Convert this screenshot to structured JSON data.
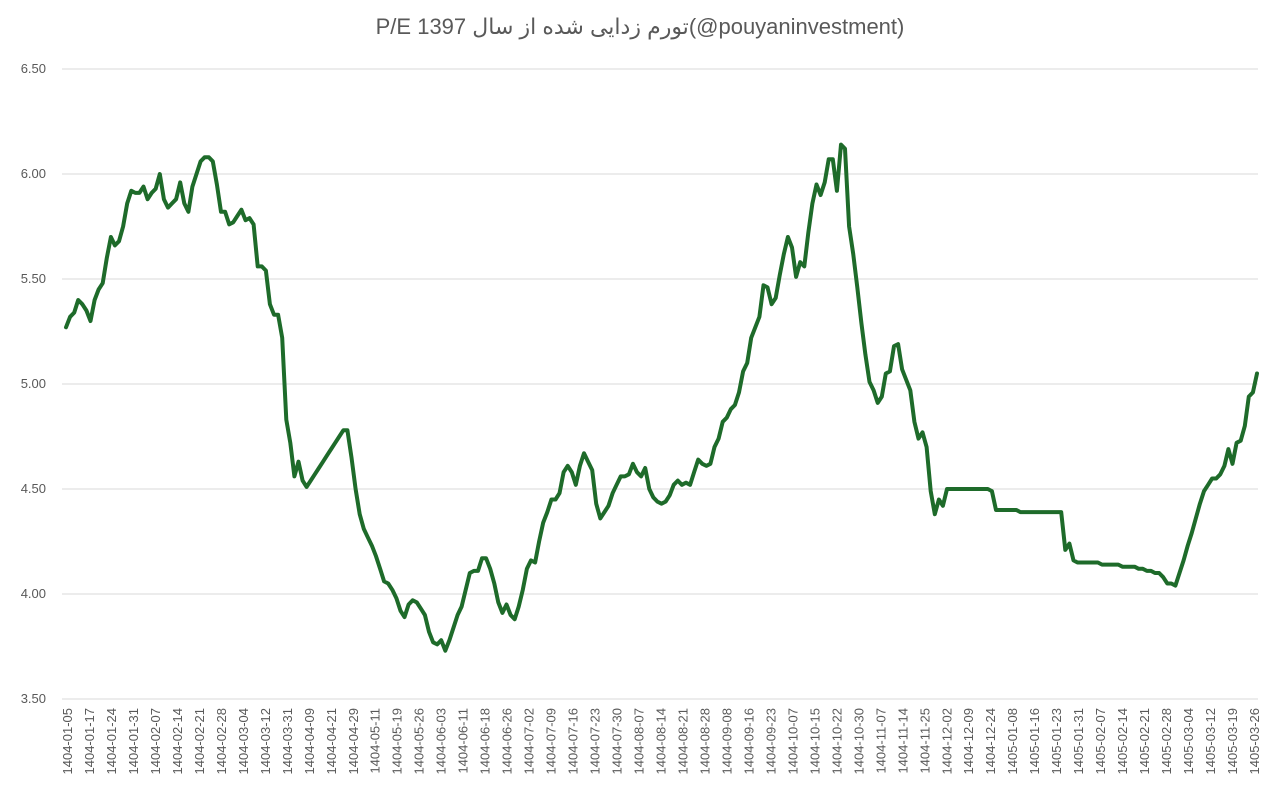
{
  "chart_data": {
    "type": "line",
    "title": "P/E تورم زدایی شده از سال 1397(@pouyaninvestment)",
    "xlabel": "",
    "ylabel": "",
    "ylim": [
      3.5,
      6.5
    ],
    "yticks": [
      "3.50",
      "4.00",
      "4.50",
      "5.00",
      "5.50",
      "6.00",
      "6.50"
    ],
    "grid": true,
    "legend": "none",
    "colors": {
      "line": "#1e6b2a",
      "grid": "#d9d9d9",
      "text": "#595959"
    },
    "x_tick_labels": [
      "1404-01-05",
      "1404-01-17",
      "1404-01-24",
      "1404-01-31",
      "1404-02-07",
      "1404-02-14",
      "1404-02-21",
      "1404-02-28",
      "1404-03-04",
      "1404-03-12",
      "1404-03-31",
      "1404-04-09",
      "1404-04-21",
      "1404-04-29",
      "1404-05-11",
      "1404-05-19",
      "1404-05-26",
      "1404-06-03",
      "1404-06-11",
      "1404-06-18",
      "1404-06-26",
      "1404-07-02",
      "1404-07-09",
      "1404-07-16",
      "1404-07-23",
      "1404-07-30",
      "1404-08-07",
      "1404-08-14",
      "1404-08-21",
      "1404-08-28",
      "1404-09-08",
      "1404-09-16",
      "1404-09-23",
      "1404-10-07",
      "1404-10-15",
      "1404-10-22",
      "1404-10-30",
      "1404-11-07",
      "1404-11-14",
      "1404-11-25",
      "1404-12-02",
      "1404-12-09",
      "1404-12-24",
      "1405-01-08",
      "1405-01-16",
      "1405-01-23",
      "1405-01-31",
      "1405-02-07",
      "1405-02-14",
      "1405-02-21",
      "1405-02-28",
      "1405-03-04",
      "1405-03-12",
      "1405-03-19",
      "1405-03-26"
    ],
    "series": [
      {
        "values": [
          5.27,
          5.32,
          5.34,
          5.4,
          5.38,
          5.35,
          5.3,
          5.4,
          5.45,
          5.48,
          5.6,
          5.7,
          5.66,
          5.68,
          5.75,
          5.86,
          5.92,
          5.91,
          5.91,
          5.94,
          5.88,
          5.91,
          5.93,
          6.0,
          5.88,
          5.84,
          5.86,
          5.88,
          5.96,
          5.86,
          5.82,
          5.94,
          6.0,
          6.06,
          6.08,
          6.08,
          6.06,
          5.95,
          5.82,
          5.82,
          5.76,
          5.77,
          5.8,
          5.83,
          5.78,
          5.79,
          5.76,
          5.56,
          5.56,
          5.54,
          5.38,
          5.33,
          5.33,
          5.22,
          4.83,
          4.72,
          4.56,
          4.63,
          4.54,
          4.51,
          4.54,
          4.57,
          4.6,
          4.63,
          4.66,
          4.69,
          4.72,
          4.75,
          4.78,
          4.78,
          4.65,
          4.5,
          4.38,
          4.31,
          4.27,
          4.23,
          4.18,
          4.12,
          4.06,
          4.05,
          4.02,
          3.98,
          3.92,
          3.89,
          3.95,
          3.97,
          3.96,
          3.93,
          3.9,
          3.82,
          3.77,
          3.76,
          3.78,
          3.73,
          3.78,
          3.84,
          3.9,
          3.94,
          4.02,
          4.1,
          4.11,
          4.11,
          4.17,
          4.17,
          4.12,
          4.05,
          3.96,
          3.91,
          3.95,
          3.9,
          3.88,
          3.94,
          4.02,
          4.12,
          4.16,
          4.15,
          4.25,
          4.34,
          4.39,
          4.45,
          4.45,
          4.48,
          4.58,
          4.61,
          4.58,
          4.52,
          4.61,
          4.67,
          4.63,
          4.59,
          4.43,
          4.36,
          4.39,
          4.42,
          4.48,
          4.52,
          4.56,
          4.56,
          4.57,
          4.62,
          4.58,
          4.56,
          4.6,
          4.5,
          4.46,
          4.44,
          4.43,
          4.44,
          4.47,
          4.52,
          4.54,
          4.52,
          4.53,
          4.52,
          4.58,
          4.64,
          4.62,
          4.61,
          4.62,
          4.7,
          4.74,
          4.82,
          4.84,
          4.88,
          4.9,
          4.96,
          5.06,
          5.1,
          5.22,
          5.27,
          5.32,
          5.47,
          5.46,
          5.38,
          5.41,
          5.52,
          5.62,
          5.7,
          5.65,
          5.51,
          5.58,
          5.56,
          5.72,
          5.86,
          5.95,
          5.9,
          5.96,
          6.07,
          6.07,
          5.92,
          6.14,
          6.12,
          5.75,
          5.62,
          5.46,
          5.29,
          5.14,
          5.01,
          4.97,
          4.91,
          4.94,
          5.05,
          5.06,
          5.18,
          5.19,
          5.07,
          5.02,
          4.97,
          4.82,
          4.74,
          4.77,
          4.7,
          4.49,
          4.38,
          4.45,
          4.42,
          4.5,
          4.5,
          4.5,
          4.5,
          4.5,
          4.5,
          4.5,
          4.5,
          4.5,
          4.5,
          4.5,
          4.49,
          4.4,
          4.4,
          4.4,
          4.4,
          4.4,
          4.4,
          4.39,
          4.39,
          4.39,
          4.39,
          4.39,
          4.39,
          4.39,
          4.39,
          4.39,
          4.39,
          4.39,
          4.21,
          4.24,
          4.16,
          4.15,
          4.15,
          4.15,
          4.15,
          4.15,
          4.15,
          4.14,
          4.14,
          4.14,
          4.14,
          4.14,
          4.13,
          4.13,
          4.13,
          4.13,
          4.12,
          4.12,
          4.11,
          4.11,
          4.1,
          4.1,
          4.08,
          4.05,
          4.05,
          4.04,
          4.1,
          4.16,
          4.23,
          4.29,
          4.36,
          4.43,
          4.49,
          4.52,
          4.55,
          4.55,
          4.57,
          4.61,
          4.69,
          4.62,
          4.72,
          4.73,
          4.8,
          4.94,
          4.96,
          5.05
        ]
      }
    ]
  }
}
